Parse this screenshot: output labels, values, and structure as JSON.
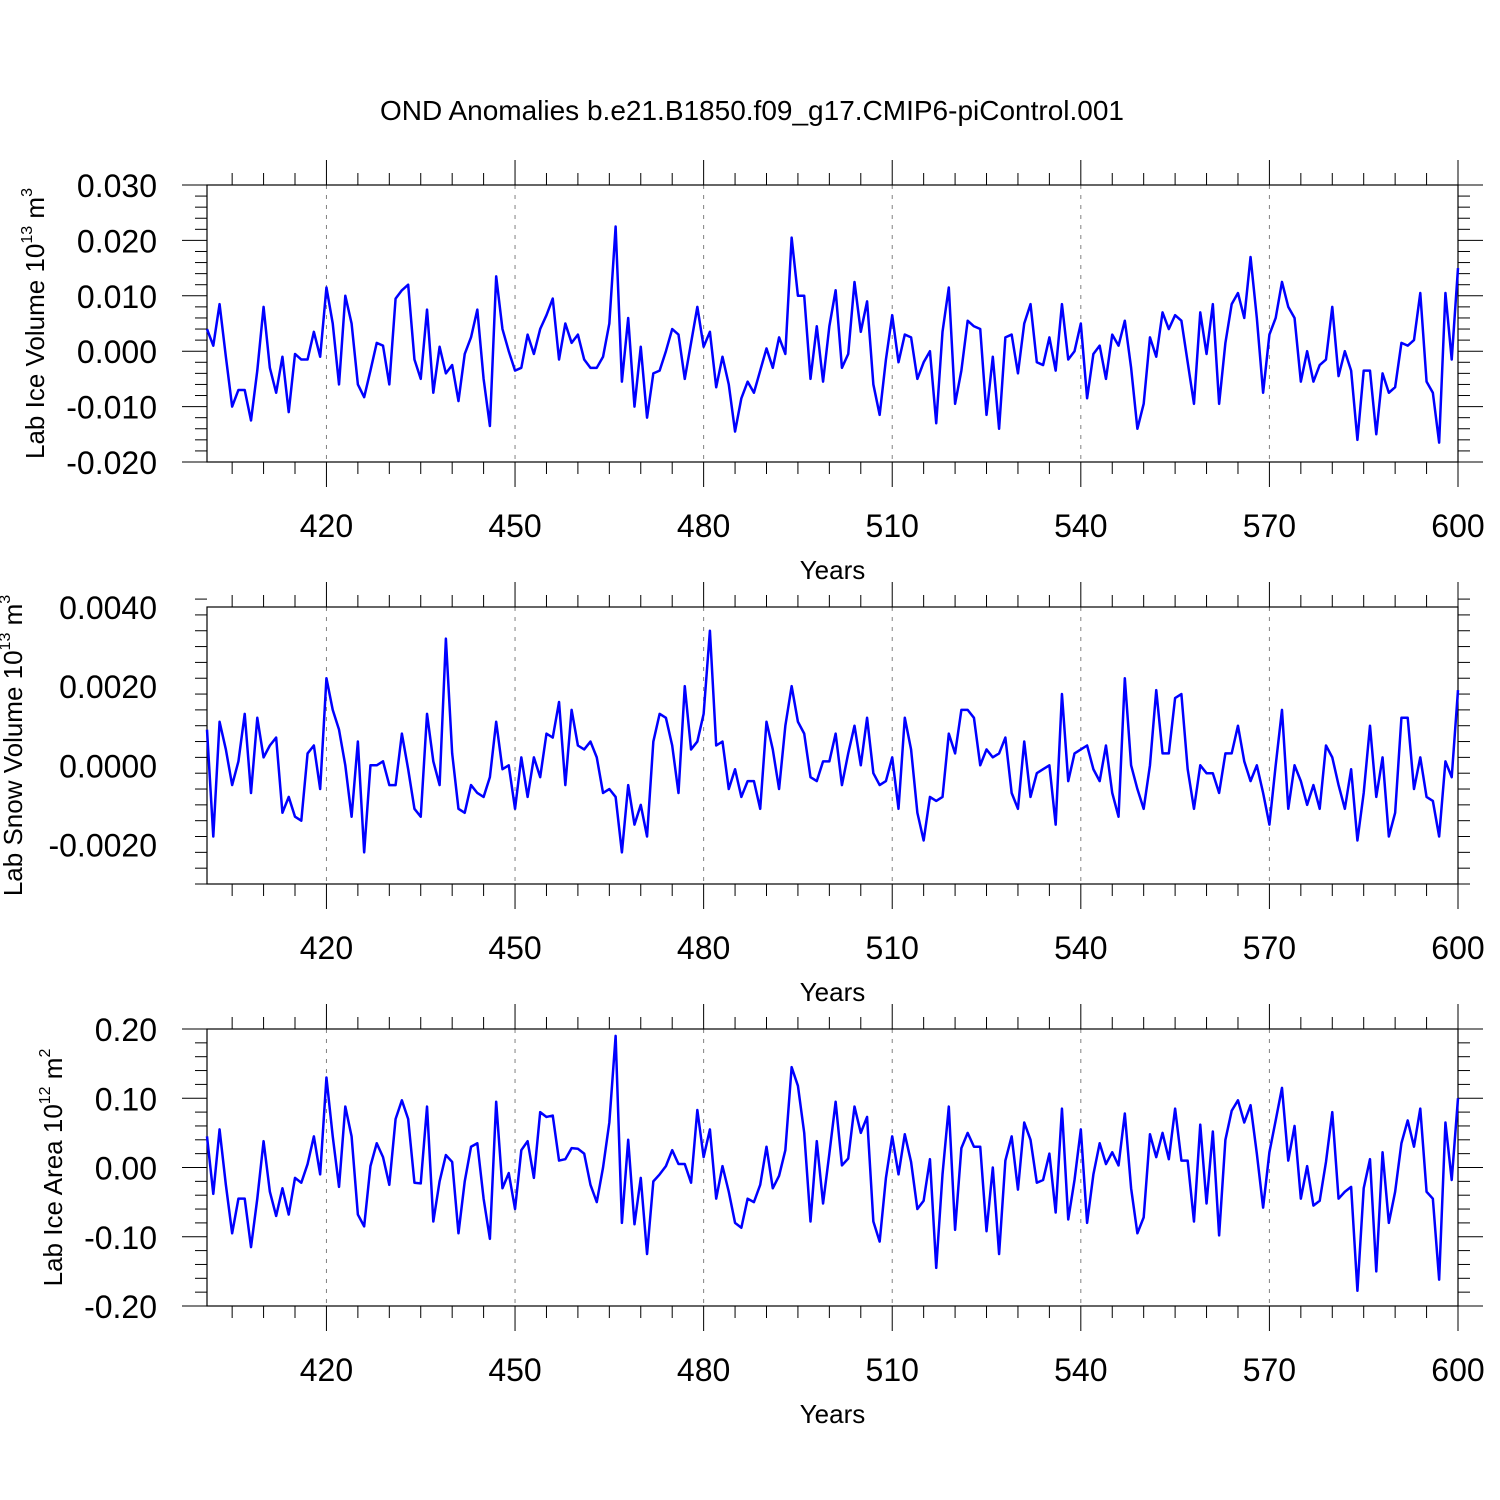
{
  "title": "OND Anomalies b.e21.B1850.f09_g17.CMIP6-piControl.001",
  "colors": {
    "line": "#0000ff",
    "axis": "#000000",
    "grid": "#808080"
  },
  "chart_data": [
    {
      "type": "line",
      "xlabel": "Years",
      "ylabel_parts": {
        "base": "Lab Ice Volume 10",
        "exp": "13",
        "unit": " m",
        "unit_exp": "3"
      },
      "xlim": [
        401,
        600
      ],
      "ylim": [
        -0.02,
        0.03
      ],
      "xticks": [
        420,
        450,
        480,
        510,
        540,
        570,
        600
      ],
      "xtick_labels": [
        "420",
        "450",
        "480",
        "510",
        "540",
        "570",
        "600"
      ],
      "yticks": [
        -0.02,
        -0.01,
        0.0,
        0.01,
        0.02,
        0.03
      ],
      "ytick_labels": [
        "-0.020",
        "-0.010",
        "0.000",
        "0.010",
        "0.020",
        "0.030"
      ],
      "grid_x": "dashed",
      "series": [
        {
          "x_start": 401,
          "values": [
            0.004,
            0.001,
            0.0085,
            -0.001,
            -0.01,
            -0.007,
            -0.007,
            -0.0125,
            -0.0035,
            0.008,
            -0.003,
            -0.0075,
            -0.001,
            -0.011,
            -0.0005,
            -0.0015,
            -0.0015,
            0.0035,
            -0.001,
            0.0115,
            0.005,
            -0.006,
            0.01,
            0.005,
            -0.006,
            -0.0083,
            -0.0035,
            0.0015,
            0.001,
            -0.006,
            0.0095,
            0.011,
            0.012,
            -0.0015,
            -0.005,
            0.0075,
            -0.0075,
            0.0008,
            -0.004,
            -0.0025,
            -0.009,
            -0.0005,
            0.0025,
            0.0075,
            -0.005,
            -0.0135,
            0.0135,
            0.004,
            0.0,
            -0.0035,
            -0.003,
            0.003,
            -0.0005,
            0.004,
            0.0065,
            0.0095,
            -0.0015,
            0.005,
            0.0015,
            0.003,
            -0.0015,
            -0.003,
            -0.003,
            -0.001,
            0.005,
            0.0225,
            -0.0055,
            0.006,
            -0.01,
            0.0008,
            -0.012,
            -0.004,
            -0.0035,
            0.0,
            0.004,
            0.003,
            -0.005,
            0.0015,
            0.008,
            0.0008,
            0.0035,
            -0.0065,
            -0.001,
            -0.006,
            -0.0145,
            -0.0085,
            -0.0055,
            -0.0075,
            -0.0035,
            0.0005,
            -0.003,
            0.0025,
            -0.0005,
            0.0205,
            0.01,
            0.01,
            -0.005,
            0.0045,
            -0.0055,
            0.0045,
            0.011,
            -0.003,
            -0.0005,
            0.0125,
            0.0035,
            0.009,
            -0.006,
            -0.0115,
            -0.0015,
            0.0065,
            -0.002,
            0.003,
            0.0025,
            -0.005,
            -0.002,
            0.0,
            -0.013,
            0.0035,
            0.0115,
            -0.0095,
            -0.0035,
            0.0055,
            0.0045,
            0.004,
            -0.0115,
            -0.001,
            -0.014,
            0.0025,
            0.003,
            -0.004,
            0.005,
            0.0085,
            -0.002,
            -0.0025,
            0.0025,
            -0.0035,
            0.0085,
            -0.0015,
            0.0,
            0.005,
            -0.0085,
            -0.0005,
            0.001,
            -0.005,
            0.003,
            0.001,
            0.0055,
            -0.003,
            -0.014,
            -0.0095,
            0.0025,
            -0.001,
            0.007,
            0.004,
            0.0065,
            0.0055,
            -0.002,
            -0.0095,
            0.007,
            -0.0005,
            0.0085,
            -0.0095,
            0.0015,
            0.0085,
            0.0105,
            0.006,
            0.017,
            0.006,
            -0.0075,
            0.003,
            0.006,
            0.0125,
            0.008,
            0.006,
            -0.0055,
            0.0,
            -0.0055,
            -0.0025,
            -0.0015,
            0.008,
            -0.0045,
            0.0,
            -0.0035,
            -0.016,
            -0.0035,
            -0.0035,
            -0.015,
            -0.004,
            -0.0075,
            -0.0065,
            0.0015,
            0.001,
            0.002,
            0.0105,
            -0.0055,
            -0.0075,
            -0.0165,
            0.0105,
            -0.0015,
            0.015
          ]
        }
      ]
    },
    {
      "type": "line",
      "xlabel": "Years",
      "ylabel_parts": {
        "base": "Lab Snow Volume 10",
        "exp": "13",
        "unit": " m",
        "unit_exp": "3"
      },
      "xlim": [
        401,
        600
      ],
      "ylim": [
        -0.003,
        0.004
      ],
      "xticks": [
        420,
        450,
        480,
        510,
        540,
        570,
        600
      ],
      "xtick_labels": [
        "420",
        "450",
        "480",
        "510",
        "540",
        "570",
        "600"
      ],
      "yticks": [
        -0.002,
        0.0,
        0.002,
        0.004
      ],
      "ytick_labels": [
        "-0.0020",
        "0.0000",
        "0.0020",
        "0.0040"
      ],
      "grid_x": "dashed",
      "series": [
        {
          "x_start": 401,
          "values": [
            0.0009,
            -0.0018,
            0.0011,
            0.0004,
            -0.0005,
            0.0001,
            0.0013,
            -0.0007,
            0.0012,
            0.0002,
            0.0005,
            0.0007,
            -0.0012,
            -0.0008,
            -0.0013,
            -0.0014,
            0.0003,
            0.0005,
            -0.0006,
            0.0022,
            0.0014,
            0.0009,
            0.0,
            -0.0013,
            0.0006,
            -0.0022,
            0.0,
            0.0,
            0.0001,
            -0.0005,
            -0.0005,
            0.0008,
            -0.0001,
            -0.0011,
            -0.0013,
            0.0013,
            0.0001,
            -0.0005,
            0.0032,
            0.0003,
            -0.0011,
            -0.0012,
            -0.0005,
            -0.0007,
            -0.0008,
            -0.0003,
            0.0011,
            -0.0001,
            0.0,
            -0.0011,
            0.0002,
            -0.0008,
            0.0002,
            -0.0003,
            0.0008,
            0.0007,
            0.0016,
            -0.0005,
            0.0014,
            0.0005,
            0.0004,
            0.0006,
            0.0002,
            -0.0007,
            -0.0006,
            -0.0008,
            -0.0022,
            -0.0005,
            -0.0015,
            -0.001,
            -0.0018,
            0.0006,
            0.0013,
            0.0012,
            0.0005,
            -0.0007,
            0.002,
            0.0004,
            0.0006,
            0.0013,
            0.0034,
            0.0005,
            0.0006,
            -0.0006,
            -0.0001,
            -0.0008,
            -0.0004,
            -0.0004,
            -0.0011,
            0.0011,
            0.0004,
            -0.0006,
            0.001,
            0.002,
            0.0011,
            0.0008,
            -0.0003,
            -0.0004,
            0.0001,
            0.0001,
            0.0008,
            -0.0005,
            0.0003,
            0.001,
            0.0,
            0.0012,
            -0.0002,
            -0.0005,
            -0.0004,
            0.0002,
            -0.0011,
            0.0012,
            0.0004,
            -0.0012,
            -0.0019,
            -0.0008,
            -0.0009,
            -0.0008,
            0.0008,
            0.0003,
            0.0014,
            0.0014,
            0.0012,
            0.0,
            0.0004,
            0.0002,
            0.0003,
            0.0007,
            -0.0007,
            -0.0011,
            0.0006,
            -0.0008,
            -0.0002,
            -0.0001,
            0.0,
            -0.0015,
            0.0018,
            -0.0004,
            0.0003,
            0.0004,
            0.0005,
            -0.0001,
            -0.0004,
            0.0005,
            -0.0007,
            -0.0013,
            0.0022,
            0.0,
            -0.0006,
            -0.0011,
            0.0,
            0.0019,
            0.0003,
            0.0003,
            0.0017,
            0.0018,
            -0.0001,
            -0.0011,
            0.0,
            -0.0002,
            -0.0002,
            -0.0007,
            0.0003,
            0.0003,
            0.001,
            0.0001,
            -0.0004,
            0.0,
            -0.0007,
            -0.0015,
            0.0,
            0.0014,
            -0.0011,
            0.0,
            -0.0004,
            -0.001,
            -0.0005,
            -0.0011,
            0.0005,
            0.0002,
            -0.0005,
            -0.0011,
            -0.0001,
            -0.0019,
            -0.0007,
            0.001,
            -0.0008,
            0.0002,
            -0.0018,
            -0.0012,
            0.0012,
            0.0012,
            -0.0006,
            0.0002,
            -0.0008,
            -0.0009,
            -0.0018,
            0.0001,
            -0.0003,
            0.0019
          ]
        }
      ]
    },
    {
      "type": "line",
      "xlabel": "Years",
      "ylabel_parts": {
        "base": "Lab Ice Area 10",
        "exp": "12",
        "unit": " m",
        "unit_exp": "2"
      },
      "xlim": [
        401,
        600
      ],
      "ylim": [
        -0.2,
        0.2
      ],
      "xticks": [
        420,
        450,
        480,
        510,
        540,
        570,
        600
      ],
      "xtick_labels": [
        "420",
        "450",
        "480",
        "510",
        "540",
        "570",
        "600"
      ],
      "yticks": [
        -0.2,
        -0.1,
        0.0,
        0.1,
        0.2
      ],
      "ytick_labels": [
        "-0.20",
        "-0.10",
        "0.00",
        "0.10",
        "0.20"
      ],
      "grid_x": "dashed",
      "series": [
        {
          "x_start": 401,
          "values": [
            0.045,
            -0.038,
            0.055,
            -0.025,
            -0.095,
            -0.045,
            -0.045,
            -0.115,
            -0.045,
            0.038,
            -0.035,
            -0.07,
            -0.03,
            -0.068,
            -0.015,
            -0.022,
            0.005,
            0.045,
            -0.01,
            0.13,
            0.045,
            -0.028,
            0.088,
            0.045,
            -0.068,
            -0.085,
            0.002,
            0.035,
            0.015,
            -0.025,
            0.07,
            0.097,
            0.07,
            -0.022,
            -0.023,
            0.088,
            -0.078,
            -0.02,
            0.018,
            0.008,
            -0.095,
            -0.02,
            0.03,
            0.035,
            -0.045,
            -0.103,
            0.095,
            -0.03,
            -0.008,
            -0.06,
            0.025,
            0.038,
            -0.015,
            0.08,
            0.073,
            0.075,
            0.01,
            0.012,
            0.028,
            0.027,
            0.02,
            -0.025,
            -0.05,
            0.0,
            0.065,
            0.19,
            -0.08,
            0.04,
            -0.082,
            -0.015,
            -0.125,
            -0.02,
            -0.01,
            0.002,
            0.025,
            0.005,
            0.005,
            -0.022,
            0.083,
            0.015,
            0.055,
            -0.045,
            0.002,
            -0.035,
            -0.08,
            -0.087,
            -0.045,
            -0.05,
            -0.025,
            0.03,
            -0.03,
            -0.012,
            0.025,
            0.145,
            0.118,
            0.05,
            -0.078,
            0.038,
            -0.052,
            0.02,
            0.095,
            0.003,
            0.013,
            0.088,
            0.05,
            0.073,
            -0.078,
            -0.107,
            -0.015,
            0.045,
            -0.01,
            0.048,
            0.008,
            -0.06,
            -0.048,
            0.012,
            -0.145,
            -0.01,
            0.088,
            -0.09,
            0.028,
            0.05,
            0.03,
            0.03,
            -0.092,
            0.0,
            -0.125,
            0.01,
            0.045,
            -0.032,
            0.065,
            0.04,
            -0.022,
            -0.018,
            0.02,
            -0.065,
            0.085,
            -0.075,
            -0.018,
            0.055,
            -0.08,
            -0.01,
            0.035,
            0.005,
            0.022,
            0.003,
            0.078,
            -0.03,
            -0.095,
            -0.072,
            0.048,
            0.015,
            0.05,
            0.012,
            0.085,
            0.01,
            0.01,
            -0.078,
            0.062,
            -0.052,
            0.052,
            -0.098,
            0.04,
            0.082,
            0.097,
            0.065,
            0.09,
            0.02,
            -0.058,
            0.022,
            0.068,
            0.115,
            0.01,
            0.06,
            -0.045,
            0.002,
            -0.055,
            -0.048,
            0.008,
            0.08,
            -0.045,
            -0.035,
            -0.028,
            -0.178,
            -0.03,
            0.012,
            -0.15,
            0.022,
            -0.08,
            -0.035,
            0.035,
            0.068,
            0.03,
            0.085,
            -0.035,
            -0.045,
            -0.162,
            0.065,
            -0.018,
            0.1
          ]
        }
      ]
    }
  ]
}
